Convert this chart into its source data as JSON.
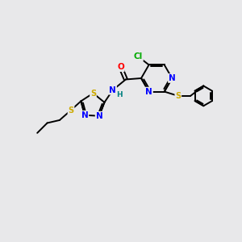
{
  "background_color": "#e8e8ea",
  "bond_color": "#000000",
  "atom_colors": {
    "N": "#0000ff",
    "O": "#ff0000",
    "S": "#ccaa00",
    "Cl": "#00aa00",
    "C": "#000000",
    "H": "#008080"
  },
  "font_size": 7.5,
  "lw": 1.4
}
